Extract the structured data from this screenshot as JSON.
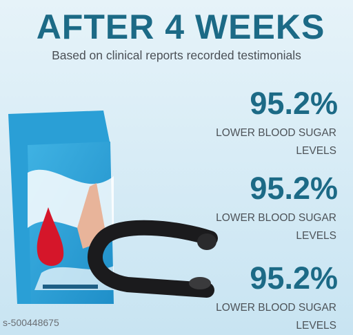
{
  "header": {
    "title": "AFTER 4 WEEKS",
    "subtitle": "Based on clinical reports recorded testimonials"
  },
  "stats": [
    {
      "value": "95.2%",
      "label_lines": [
        "LOWER BLOOD SUGAR",
        "LEVELS"
      ]
    },
    {
      "value": "95.2%",
      "label_lines": [
        "LOWER BLOOD SUGAR",
        "LEVELS"
      ]
    },
    {
      "value": "95.2%",
      "label_lines": [
        "LOWER BLOOD SUGAR",
        "LEVELS"
      ]
    }
  ],
  "watermark": "s-500448675"
}
